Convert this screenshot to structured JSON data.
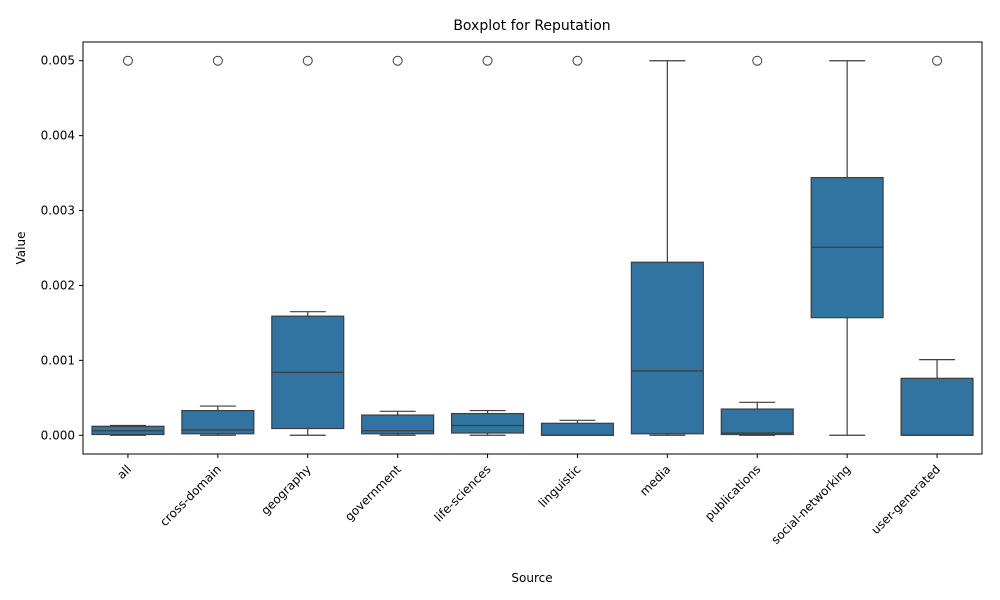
{
  "chart_data": {
    "type": "boxplot",
    "title": "Boxplot for Reputation",
    "xlabel": "Source",
    "ylabel": "Value",
    "ylim": [
      -0.00025,
      0.00525
    ],
    "yticks": [
      0.0,
      0.001,
      0.002,
      0.003,
      0.004,
      0.005
    ],
    "ytick_labels": [
      "0.000",
      "0.001",
      "0.002",
      "0.003",
      "0.004",
      "0.005"
    ],
    "grid": false,
    "box_color": "#3274a1",
    "line_color": "#3d3d3d",
    "categories": [
      "all",
      "cross-domain",
      "geography",
      "government",
      "life-sciences",
      "linguistic",
      "media",
      "publications",
      "social-networking",
      "user-generated"
    ],
    "boxes": [
      {
        "category": "all",
        "whisker_low": 0.0,
        "q1": 1e-05,
        "median": 6e-05,
        "q3": 0.00012,
        "whisker_high": 0.00013,
        "outliers": [
          0.005
        ]
      },
      {
        "category": "cross-domain",
        "whisker_low": 0.0,
        "q1": 2e-05,
        "median": 7e-05,
        "q3": 0.00033,
        "whisker_high": 0.00039,
        "outliers": [
          0.005
        ]
      },
      {
        "category": "geography",
        "whisker_low": 0.0,
        "q1": 9e-05,
        "median": 0.00084,
        "q3": 0.00159,
        "whisker_high": 0.00165,
        "outliers": [
          0.005
        ]
      },
      {
        "category": "government",
        "whisker_low": 0.0,
        "q1": 2e-05,
        "median": 6e-05,
        "q3": 0.00027,
        "whisker_high": 0.00032,
        "outliers": [
          0.005
        ]
      },
      {
        "category": "life-sciences",
        "whisker_low": 0.0,
        "q1": 3e-05,
        "median": 0.00013,
        "q3": 0.00029,
        "whisker_high": 0.00033,
        "outliers": [
          0.005
        ]
      },
      {
        "category": "linguistic",
        "whisker_low": 0.0,
        "q1": 0.0,
        "median": 0.0,
        "q3": 0.00016,
        "whisker_high": 0.0002,
        "outliers": [
          0.005
        ]
      },
      {
        "category": "media",
        "whisker_low": 0.0,
        "q1": 2e-05,
        "median": 0.00086,
        "q3": 0.00231,
        "whisker_high": 0.005,
        "outliers": []
      },
      {
        "category": "publications",
        "whisker_low": 0.0,
        "q1": 1e-05,
        "median": 3e-05,
        "q3": 0.00035,
        "whisker_high": 0.00044,
        "outliers": [
          0.005
        ]
      },
      {
        "category": "social-networking",
        "whisker_low": 0.0,
        "q1": 0.00157,
        "median": 0.00251,
        "q3": 0.00344,
        "whisker_high": 0.005,
        "outliers": []
      },
      {
        "category": "user-generated",
        "whisker_low": 0.0,
        "q1": 0.0,
        "median": 0.0,
        "q3": 0.00076,
        "whisker_high": 0.00101,
        "outliers": [
          0.005
        ]
      }
    ]
  }
}
